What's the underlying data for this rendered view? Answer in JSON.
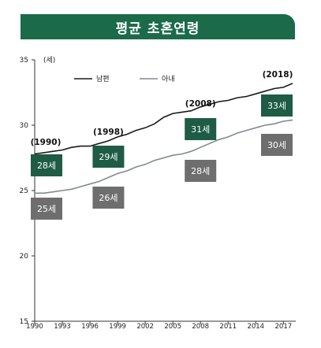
{
  "chart_data": {
    "type": "line",
    "title": "평균 초혼연령",
    "y_unit_label": "(세)",
    "ylim": [
      15,
      35
    ],
    "xlim": [
      1990,
      2018
    ],
    "y_ticks": [
      15,
      20,
      25,
      30,
      35
    ],
    "x_ticks": [
      1990,
      1993,
      1996,
      1999,
      2002,
      2005,
      2008,
      2011,
      2014,
      2017
    ],
    "legend_placement": "top-left",
    "colors": {
      "title_bg": "#1b6b4a",
      "husband": "#1a1a1a",
      "wife": "#7f8c8d",
      "husband_box": "#1e5c45",
      "wife_box": "#6e6e6e"
    },
    "series": [
      {
        "name": "남편",
        "x": [
          1990,
          1991,
          1992,
          1993,
          1994,
          1995,
          1996,
          1997,
          1998,
          1999,
          2000,
          2001,
          2002,
          2003,
          2004,
          2005,
          2006,
          2007,
          2008,
          2009,
          2010,
          2011,
          2012,
          2013,
          2014,
          2015,
          2016,
          2017,
          2018
        ],
        "values": [
          27.8,
          27.9,
          28.0,
          28.1,
          28.3,
          28.4,
          28.4,
          28.6,
          28.8,
          29.1,
          29.3,
          29.6,
          29.8,
          30.1,
          30.6,
          30.9,
          31.0,
          31.1,
          31.4,
          31.6,
          31.8,
          31.9,
          32.1,
          32.2,
          32.4,
          32.6,
          32.8,
          32.9,
          33.2
        ]
      },
      {
        "name": "아내",
        "x": [
          1990,
          1991,
          1992,
          1993,
          1994,
          1995,
          1996,
          1997,
          1998,
          1999,
          2000,
          2001,
          2002,
          2003,
          2004,
          2005,
          2006,
          2007,
          2008,
          2009,
          2010,
          2011,
          2012,
          2013,
          2014,
          2015,
          2016,
          2017,
          2018
        ],
        "values": [
          24.8,
          24.8,
          24.9,
          25.0,
          25.1,
          25.3,
          25.5,
          25.7,
          26.0,
          26.3,
          26.5,
          26.8,
          27.0,
          27.3,
          27.5,
          27.7,
          27.8,
          28.0,
          28.3,
          28.6,
          28.9,
          29.1,
          29.4,
          29.6,
          29.8,
          30.0,
          30.1,
          30.3,
          30.4
        ]
      }
    ],
    "year_labels": [
      {
        "x": 1990,
        "text": "(1990)"
      },
      {
        "x": 1998,
        "text": "(1998)"
      },
      {
        "x": 2008,
        "text": "(2008)"
      },
      {
        "x": 2018,
        "text": "(2018)"
      }
    ],
    "husband_boxes": [
      {
        "x": 1990,
        "text": "28세"
      },
      {
        "x": 1998,
        "text": "29세"
      },
      {
        "x": 2008,
        "text": "31세"
      },
      {
        "x": 2018,
        "text": "33세"
      }
    ],
    "wife_boxes": [
      {
        "x": 1990,
        "text": "25세"
      },
      {
        "x": 1998,
        "text": "26세"
      },
      {
        "x": 2008,
        "text": "28세"
      },
      {
        "x": 2018,
        "text": "30세"
      }
    ]
  }
}
